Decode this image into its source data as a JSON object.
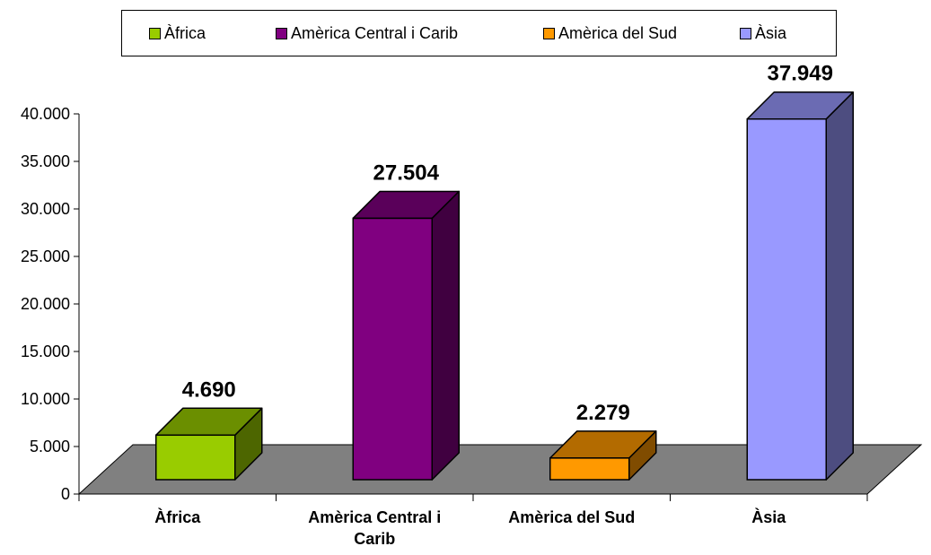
{
  "chart_data": {
    "type": "bar",
    "categories": [
      "Àfrica",
      "Amèrica Central i Carib",
      "Amèrica del Sud",
      "Àsia"
    ],
    "category_labels": [
      [
        "Àfrica"
      ],
      [
        "Amèrica Central i",
        "Carib"
      ],
      [
        "Amèrica del Sud"
      ],
      [
        "Àsia"
      ]
    ],
    "values": [
      4690,
      27504,
      2279,
      37949
    ],
    "value_labels": [
      "4.690",
      "27.504",
      "2.279",
      "37.949"
    ],
    "ylim": [
      0,
      40000
    ],
    "y_ticks": [
      0,
      5000,
      10000,
      15000,
      20000,
      25000,
      30000,
      35000,
      40000
    ],
    "y_tick_labels": [
      "0",
      "5.000",
      "10.000",
      "15.000",
      "20.000",
      "25.000",
      "30.000",
      "35.000",
      "40.000"
    ],
    "title": "",
    "xlabel": "",
    "ylabel": "",
    "grid": false,
    "three_d": true,
    "legend": {
      "position": "top",
      "entries": [
        "Àfrica",
        "Amèrica Central i Carib",
        "Amèrica del Sud",
        "Àsia"
      ]
    },
    "colors": {
      "front": [
        "#99CC00",
        "#800080",
        "#FF9900",
        "#9999FF"
      ],
      "top": [
        "#6B8F00",
        "#5A005A",
        "#B36B00",
        "#6B6BB3"
      ],
      "side": [
        "#4D6600",
        "#400040",
        "#804C00",
        "#4D4D80"
      ],
      "floor": "#808080"
    }
  }
}
